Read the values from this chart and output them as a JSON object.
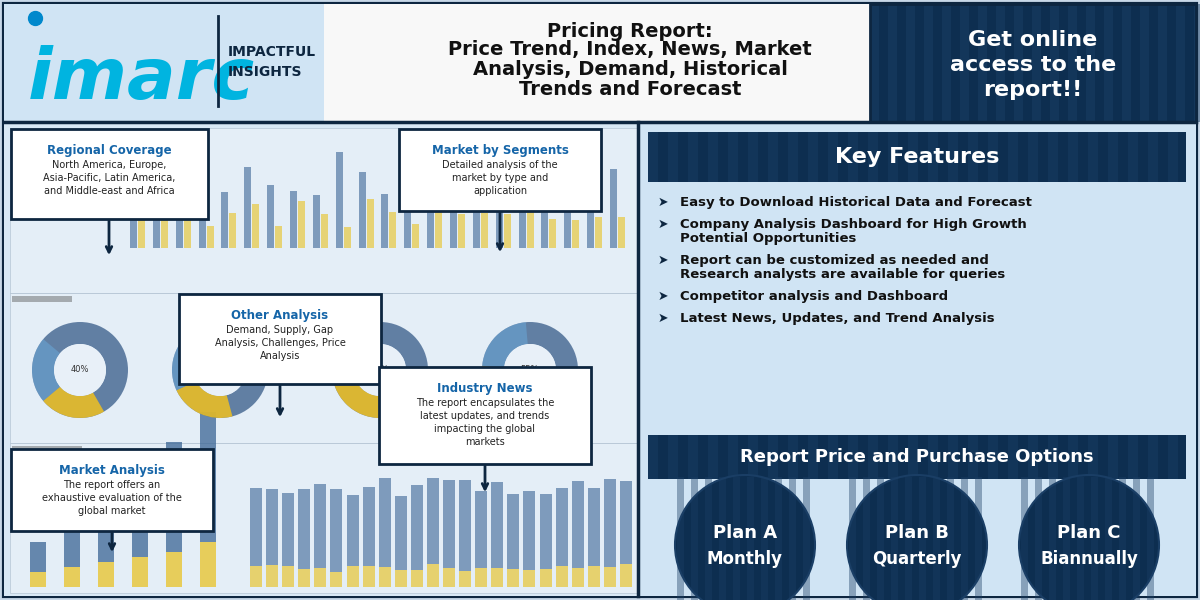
{
  "title_line1": "Pricing Report:",
  "title_line2": "Price Trend, Index, News, Market",
  "title_line3": "Analysis, Demand, Historical",
  "title_line4": "Trends and Forecast",
  "cta_line1": "Get online",
  "cta_line2": "access to the",
  "cta_line3": "report!!",
  "key_features_title": "Key Features",
  "key_features": [
    [
      "Easy to Download Historical Data and Forecast"
    ],
    [
      "Company Analysis Dashboard for High Growth",
      "Potential Opportunities"
    ],
    [
      "Report can be customized as needed and",
      "Research analysts are available for queries"
    ],
    [
      "Competitor analysis and Dashboard"
    ],
    [
      "Latest News, Updates, and Trend Analysis"
    ]
  ],
  "purchase_title": "Report Price and Purchase Options",
  "plans": [
    {
      "name": "Plan A",
      "sub": "Monthly"
    },
    {
      "name": "Plan B",
      "sub": "Quarterly"
    },
    {
      "name": "Plan C",
      "sub": "Biannually"
    }
  ],
  "bg_light": "#dce8f4",
  "bg_right": "#cfe0f0",
  "dark_navy": "#0d2640",
  "mid_blue": "#1a4a6e",
  "blue_btn": "#1e5f8a",
  "cyan": "#00b4e0",
  "gold": "#f5c518",
  "white": "#ffffff",
  "header_white": "#f8f8f8",
  "text_dark": "#111111",
  "callout_blue": "#1565a8"
}
